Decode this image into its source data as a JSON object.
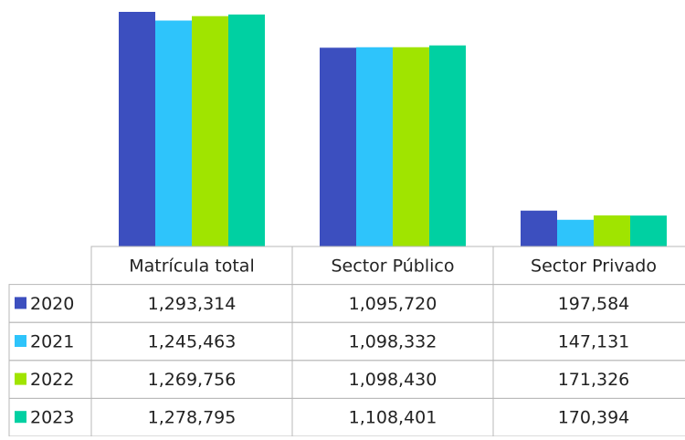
{
  "chart_data": {
    "type": "bar",
    "categories": [
      "Matrícula total",
      "Sector Público",
      "Sector Privado"
    ],
    "series": [
      {
        "name": "2020",
        "color": "#3c4fbf",
        "values": [
          1293314,
          1095720,
          197584
        ],
        "value_labels": [
          "1,293,314",
          "1,095,720",
          "197,584"
        ]
      },
      {
        "name": "2021",
        "color": "#2ec4fb",
        "values": [
          1245463,
          1098332,
          147131
        ],
        "value_labels": [
          "1,245,463",
          "1,098,332",
          "147,131"
        ]
      },
      {
        "name": "2022",
        "color": "#a0e400",
        "values": [
          1269756,
          1098430,
          171326
        ],
        "value_labels": [
          "1,269,756",
          "1,098,430",
          "171,326"
        ]
      },
      {
        "name": "2023",
        "color": "#00d0a2",
        "values": [
          1278795,
          1108401,
          170394
        ],
        "value_labels": [
          "1,278,795",
          "1,108,401",
          "170,394"
        ]
      }
    ]
  }
}
